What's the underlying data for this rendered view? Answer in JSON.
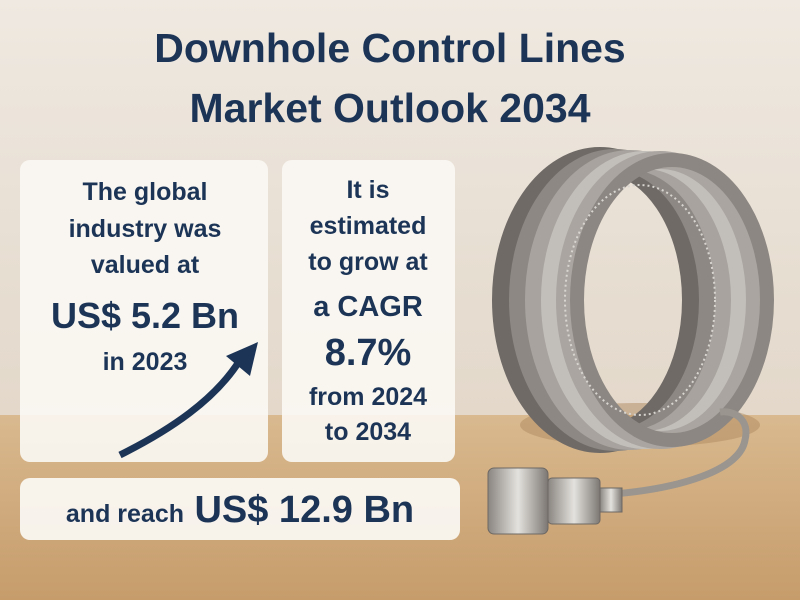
{
  "header": {
    "title_lines": [
      "Downhole Control Lines",
      "Market Outlook 2034"
    ]
  },
  "cards": [
    {
      "lines": [
        "The global",
        "industry was",
        "valued at",
        "US$ 5.2 Bn",
        "in 2023"
      ]
    },
    {
      "lines": [
        "It is",
        "estimated",
        "to grow at",
        "a CAGR",
        "8.7%",
        "from 2024",
        "to 2034"
      ]
    }
  ],
  "banner": {
    "lead": "and reach",
    "value": "US$ 12.9 Bn"
  }
}
